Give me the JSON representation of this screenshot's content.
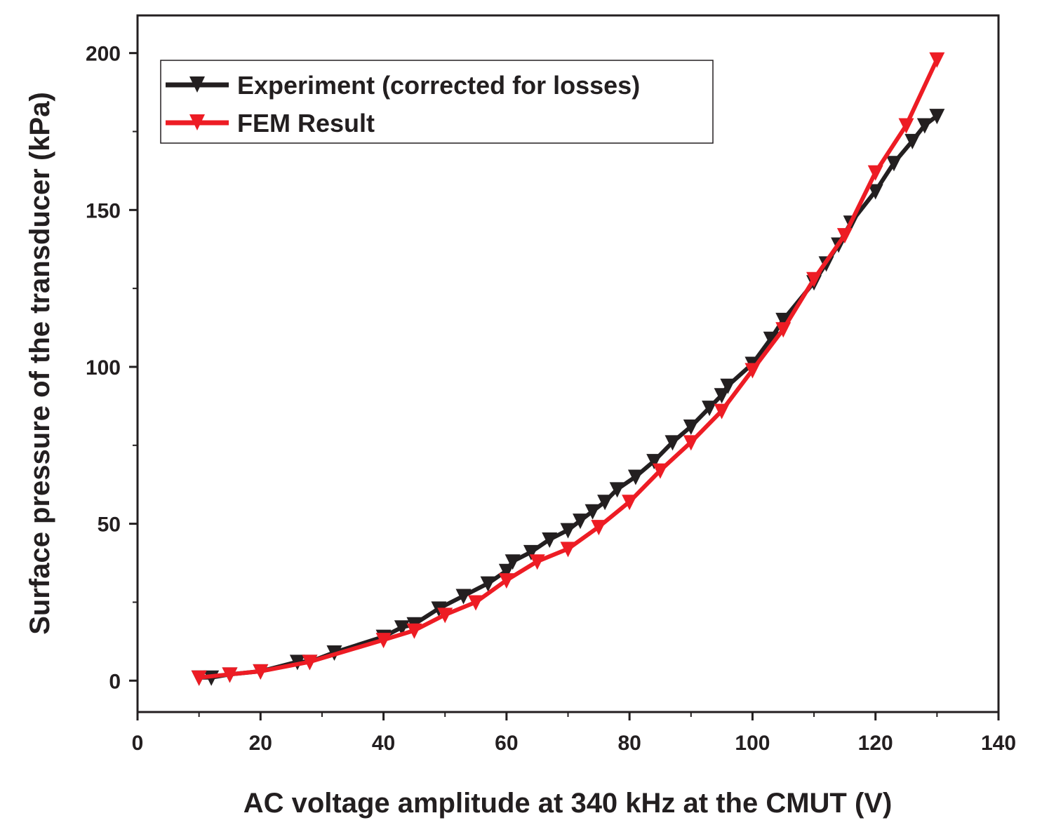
{
  "chart_data": {
    "type": "line",
    "xlabel": "AC voltage amplitude at 340 kHz at the CMUT (V)",
    "ylabel": "Surface pressure of the transducer (kPa)",
    "xlim": [
      0,
      140
    ],
    "ylim": [
      -10,
      212
    ],
    "x_ticks": [
      0,
      20,
      40,
      60,
      80,
      100,
      120,
      140
    ],
    "x_tick_labels": [
      "0",
      "20",
      "40",
      "60",
      "80",
      "100",
      "120",
      "140"
    ],
    "y_ticks": [
      0,
      50,
      100,
      150,
      200
    ],
    "y_tick_labels": [
      "0",
      "50",
      "100",
      "150",
      "200"
    ],
    "grid": false,
    "legend_position": "top-left",
    "series": [
      {
        "name": "Experiment (corrected for losses)",
        "color": "#231f20",
        "marker": "triangle-down",
        "x": [
          10,
          12,
          15,
          20,
          26,
          28,
          32,
          40,
          43,
          45,
          49,
          53,
          57,
          60,
          61,
          64,
          67,
          70,
          72,
          74,
          76,
          78,
          81,
          84,
          87,
          90,
          93,
          95,
          96,
          100,
          103,
          105,
          110,
          112,
          114,
          116,
          120,
          123,
          126,
          128,
          130
        ],
        "y": [
          1,
          1,
          2,
          3,
          6,
          6,
          9,
          14,
          17,
          18,
          23,
          27,
          31,
          35,
          38,
          41,
          45,
          48,
          51,
          54,
          57,
          61,
          65,
          70,
          76,
          81,
          87,
          91,
          94,
          101,
          109,
          115,
          127,
          133,
          139,
          146,
          156,
          165,
          172,
          177,
          180
        ]
      },
      {
        "name": "FEM Result",
        "color": "#ed1c24",
        "marker": "triangle-down",
        "x": [
          10,
          15,
          20,
          28,
          40,
          45,
          50,
          55,
          60,
          65,
          70,
          75,
          80,
          85,
          90,
          95,
          100,
          105,
          110,
          115,
          120,
          125,
          130
        ],
        "y": [
          1,
          2,
          3,
          6,
          13,
          16,
          21,
          25,
          32,
          38,
          42,
          49,
          57,
          67,
          76,
          86,
          99,
          112,
          128,
          142,
          162,
          177,
          198
        ]
      }
    ]
  }
}
